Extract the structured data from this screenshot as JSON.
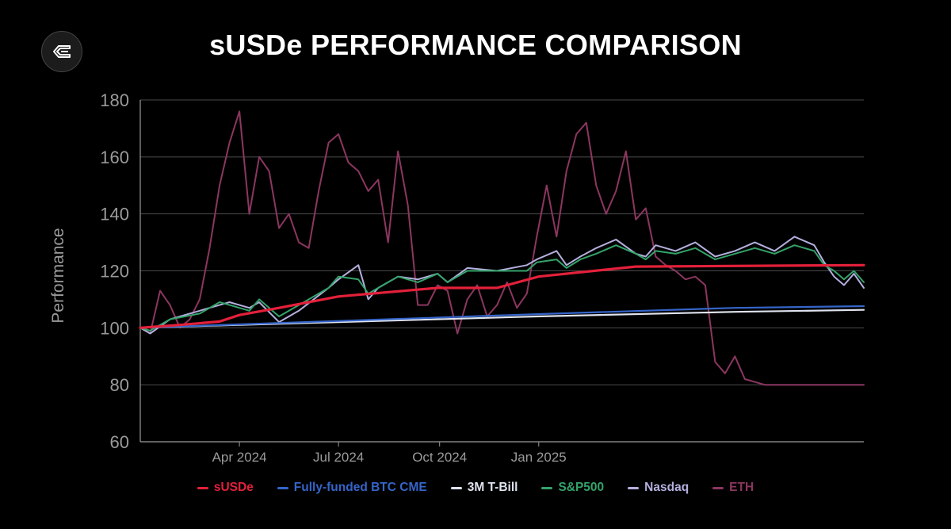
{
  "title": "sUSDe PERFORMANCE COMPARISON",
  "logo_icon": "ethena-logo-icon",
  "chart_data": {
    "type": "line",
    "title": "sUSDe PERFORMANCE COMPARISON",
    "xlabel": "",
    "ylabel": "Performance",
    "ylim": [
      60,
      180
    ],
    "yticks": [
      60,
      80,
      100,
      120,
      140,
      160,
      180
    ],
    "grid": true,
    "legend_position": "bottom-center",
    "x_range_days": [
      0,
      365
    ],
    "xticks": [
      {
        "day": 50,
        "label": "Apr 2024"
      },
      {
        "day": 100,
        "label": "Jul 2024"
      },
      {
        "day": 151,
        "label": "Oct 2024"
      },
      {
        "day": 201,
        "label": "Jan 2025"
      }
    ],
    "series": [
      {
        "name": "sUSDe",
        "color": "#e4203a",
        "width": 3.2,
        "x": [
          0,
          20,
          40,
          50,
          70,
          100,
          150,
          180,
          201,
          250,
          365
        ],
        "values": [
          100,
          101,
          102.2,
          104.5,
          107,
          111,
          114,
          114,
          118,
          121.5,
          122
        ]
      },
      {
        "name": "Fully-funded BTC CME",
        "color": "#3565c9",
        "width": 2.2,
        "x": [
          0,
          100,
          200,
          300,
          365
        ],
        "values": [
          100,
          102.4,
          104.8,
          107,
          107.6
        ]
      },
      {
        "name": "3M T-Bill",
        "color": "#dfe3ee",
        "width": 2.2,
        "x": [
          0,
          100,
          200,
          300,
          365
        ],
        "values": [
          100,
          102,
          104,
          105.6,
          106.3
        ]
      },
      {
        "name": "S&P500",
        "color": "#34a36a",
        "width": 2,
        "x": [
          0,
          5,
          15,
          30,
          40,
          45,
          55,
          60,
          70,
          80,
          95,
          100,
          110,
          115,
          120,
          130,
          140,
          150,
          155,
          165,
          180,
          195,
          200,
          210,
          215,
          222,
          230,
          240,
          250,
          255,
          260,
          270,
          280,
          290,
          300,
          310,
          320,
          330,
          340,
          345,
          350,
          355,
          360,
          365
        ],
        "values": [
          100,
          99,
          103,
          105,
          109,
          108,
          106,
          110,
          104,
          108,
          114,
          118,
          117,
          112,
          114,
          118,
          116,
          119,
          116,
          120,
          120,
          120,
          123,
          124,
          121,
          124,
          126,
          129,
          126,
          124,
          127,
          126,
          128,
          124,
          126,
          128,
          126,
          129,
          127,
          122,
          120,
          117,
          120,
          116
        ]
      },
      {
        "name": "Nasdaq",
        "color": "#b3b0de",
        "width": 2,
        "x": [
          0,
          5,
          15,
          30,
          40,
          45,
          55,
          60,
          70,
          80,
          95,
          100,
          110,
          115,
          120,
          130,
          140,
          150,
          155,
          165,
          180,
          195,
          200,
          210,
          215,
          222,
          230,
          240,
          250,
          255,
          260,
          270,
          280,
          290,
          300,
          310,
          320,
          330,
          340,
          345,
          350,
          355,
          360,
          365
        ],
        "values": [
          100,
          98,
          103,
          106,
          108,
          109,
          107,
          109,
          102,
          106,
          114,
          117,
          122,
          110,
          114,
          118,
          117,
          119,
          116,
          121,
          120,
          122,
          124,
          127,
          122,
          125,
          128,
          131,
          126,
          125,
          129,
          127,
          130,
          125,
          127,
          130,
          127,
          132,
          129,
          123,
          118,
          115,
          119,
          114
        ]
      },
      {
        "name": "ETH",
        "color": "#8c3660",
        "width": 2,
        "x": [
          0,
          5,
          10,
          15,
          20,
          25,
          30,
          35,
          40,
          45,
          50,
          55,
          60,
          65,
          70,
          75,
          80,
          85,
          90,
          95,
          100,
          105,
          110,
          115,
          120,
          125,
          130,
          135,
          140,
          145,
          150,
          155,
          160,
          165,
          170,
          175,
          180,
          185,
          190,
          195,
          200,
          205,
          210,
          215,
          220,
          225,
          230,
          235,
          240,
          245,
          250,
          255,
          260,
          265,
          270,
          275,
          280,
          285,
          290,
          295,
          300,
          305,
          310,
          315,
          320,
          325,
          330,
          335,
          340,
          345,
          350,
          355,
          360,
          365
        ],
        "values": [
          100,
          98,
          113,
          108,
          100,
          103,
          110,
          128,
          150,
          165,
          176,
          140,
          160,
          155,
          135,
          140,
          130,
          128,
          148,
          165,
          168,
          158,
          155,
          148,
          152,
          130,
          162,
          143,
          108,
          108,
          115,
          113,
          98,
          110,
          115,
          104,
          108,
          116,
          107,
          112,
          132,
          150,
          132,
          155,
          168,
          172,
          150,
          140,
          148,
          162,
          138,
          142,
          125,
          122,
          120,
          117,
          118,
          115,
          88,
          84,
          90,
          82,
          81,
          80,
          80,
          80,
          80,
          80,
          80,
          80,
          80,
          80,
          80,
          80
        ]
      }
    ]
  },
  "legend": [
    {
      "label": "sUSDe",
      "color": "#e4203a"
    },
    {
      "label": "Fully-funded BTC CME",
      "color": "#3565c9"
    },
    {
      "label": "3M T-Bill",
      "color": "#dfe3ee"
    },
    {
      "label": "S&P500",
      "color": "#34a36a"
    },
    {
      "label": "Nasdaq",
      "color": "#b3b0de"
    },
    {
      "label": "ETH",
      "color": "#8c3660"
    }
  ]
}
